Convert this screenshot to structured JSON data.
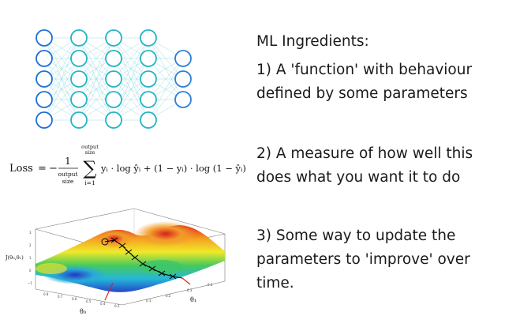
{
  "heading": "ML Ingredients:",
  "points": [
    "1) A 'function' with behaviour defined by some parameters",
    "2) A measure of how well this does what you want it to do",
    "3) Some way to update the parameters to 'improve' over time."
  ],
  "network": {
    "layers": [
      5,
      5,
      5,
      5,
      3
    ],
    "colors": [
      "#1e6fd6",
      "#23b5c4",
      "#23b5c4",
      "#23b5c4",
      "#2d7fd8"
    ]
  },
  "equation": {
    "lhs": "Loss",
    "frac_num": "1",
    "frac_den_top": "output",
    "frac_den_bottom": "size",
    "sum_top_1": "output",
    "sum_top_2": "size",
    "sum_bottom": "i=1",
    "body": "yᵢ · log ŷᵢ + (1 − yᵢ) · log (1 − ŷᵢ)"
  },
  "surface": {
    "zlabel": "J(θ₀,θ₁)",
    "xlabel": "θ₀",
    "ylabel": "θ₁"
  }
}
